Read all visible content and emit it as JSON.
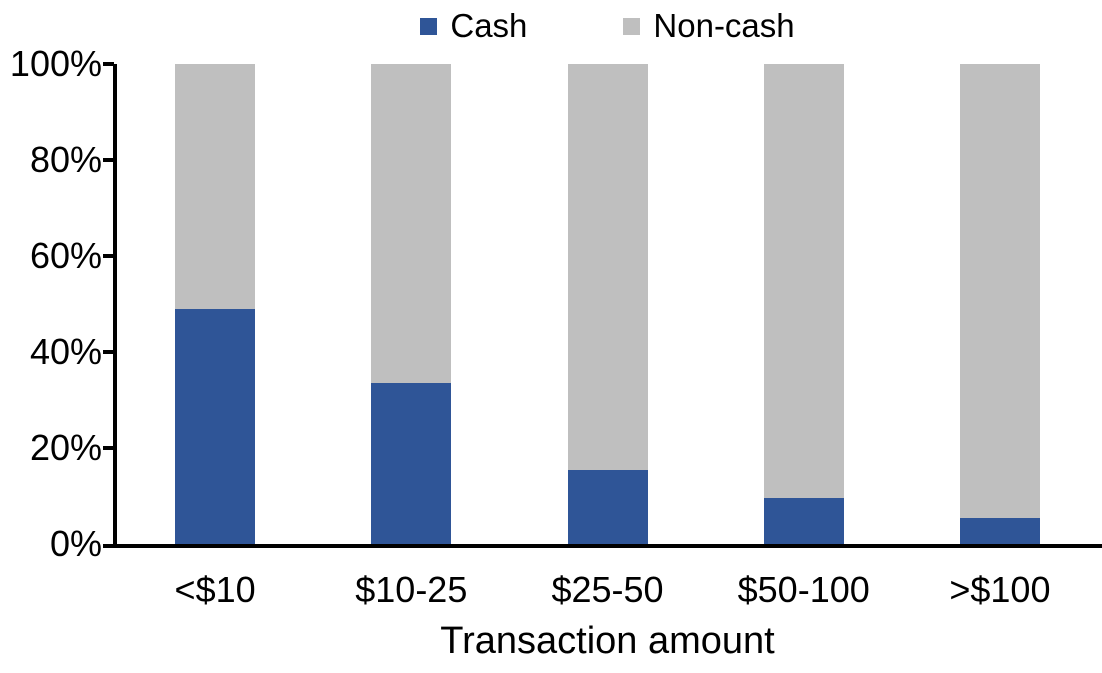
{
  "chart_data": {
    "type": "bar",
    "stacked": true,
    "percent_stacked": true,
    "title": "",
    "xlabel": "Transaction amount",
    "ylabel": "",
    "categories": [
      "<$10",
      "$10-25",
      "$25-50",
      "$50-100",
      ">$100"
    ],
    "series": [
      {
        "name": "Cash",
        "color": "#2F5597",
        "values": [
          49,
          33.5,
          15.5,
          9.5,
          5.5
        ]
      },
      {
        "name": "Non-cash",
        "color": "#BFBFBF",
        "values": [
          51,
          66.5,
          84.5,
          90.5,
          94.5
        ]
      }
    ],
    "ylim": [
      0,
      100
    ],
    "yticks": [
      {
        "value": 0,
        "label": "0%"
      },
      {
        "value": 20,
        "label": "20%"
      },
      {
        "value": 40,
        "label": "40%"
      },
      {
        "value": 60,
        "label": "60%"
      },
      {
        "value": 80,
        "label": "80%"
      },
      {
        "value": 100,
        "label": "100%"
      }
    ],
    "legend_position": "top",
    "grid": false,
    "axis_color": "#000000",
    "background_color": "#FFFFFF"
  }
}
